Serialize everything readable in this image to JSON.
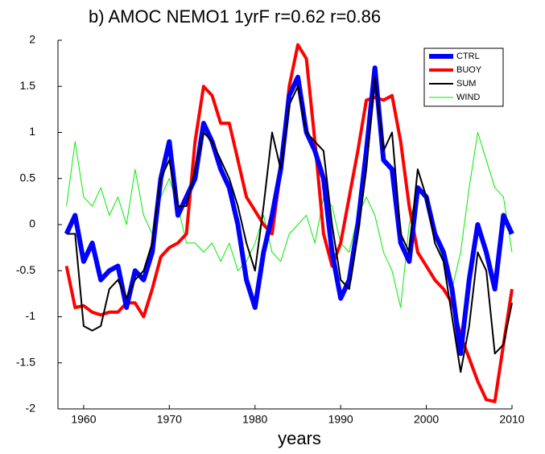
{
  "chart_data": {
    "type": "line",
    "title": "b) AMOC NEMO1 1yrF r=0.62 r=0.86",
    "x_label": "years",
    "x": [
      1958,
      1959,
      1960,
      1961,
      1962,
      1963,
      1964,
      1965,
      1966,
      1967,
      1968,
      1969,
      1970,
      1971,
      1972,
      1973,
      1974,
      1975,
      1976,
      1977,
      1978,
      1979,
      1980,
      1981,
      1982,
      1983,
      1984,
      1985,
      1986,
      1987,
      1988,
      1989,
      1990,
      1991,
      1992,
      1993,
      1994,
      1995,
      1996,
      1997,
      1998,
      1999,
      2000,
      2001,
      2002,
      2003,
      2004,
      2005,
      2006,
      2007,
      2008,
      2009,
      2010
    ],
    "series": [
      {
        "name": "CTRL",
        "color": "#0000ff",
        "width": 6,
        "values": [
          -0.1,
          0.1,
          -0.4,
          -0.2,
          -0.6,
          -0.5,
          -0.45,
          -0.9,
          -0.5,
          -0.6,
          -0.3,
          0.5,
          0.9,
          0.1,
          0.3,
          0.5,
          1.1,
          0.9,
          0.6,
          0.4,
          0.0,
          -0.6,
          -0.9,
          -0.3,
          0.1,
          0.6,
          1.4,
          1.6,
          1.0,
          0.8,
          0.5,
          -0.3,
          -0.8,
          -0.6,
          0.0,
          0.8,
          1.7,
          0.7,
          0.6,
          -0.2,
          -0.4,
          0.4,
          0.3,
          -0.1,
          -0.3,
          -0.7,
          -1.4,
          -0.6,
          0.0,
          -0.3,
          -0.7,
          0.1,
          -0.1
        ]
      },
      {
        "name": "BUOY",
        "color": "#ff0000",
        "width": 4,
        "values": [
          -0.45,
          -0.9,
          -0.88,
          -0.95,
          -0.98,
          -0.95,
          -0.95,
          -0.85,
          -0.85,
          -1.0,
          -0.7,
          -0.35,
          -0.25,
          -0.2,
          -0.1,
          0.9,
          1.5,
          1.4,
          1.1,
          1.1,
          0.7,
          0.3,
          0.15,
          0.0,
          -0.1,
          0.6,
          1.5,
          1.95,
          1.8,
          0.9,
          -0.1,
          -0.45,
          -0.2,
          0.3,
          0.8,
          1.35,
          1.38,
          1.35,
          1.4,
          0.9,
          0.2,
          -0.3,
          -0.45,
          -0.6,
          -0.7,
          -0.85,
          -1.2,
          -1.45,
          -1.7,
          -1.9,
          -1.92,
          -1.3,
          -0.7
        ]
      },
      {
        "name": "SUM",
        "color": "#000000",
        "width": 2,
        "values": [
          -0.1,
          -0.1,
          -1.1,
          -1.15,
          -1.1,
          -0.7,
          -0.6,
          -0.8,
          -0.6,
          -0.5,
          -0.2,
          0.5,
          0.7,
          0.2,
          0.2,
          0.6,
          1.0,
          0.9,
          0.7,
          0.5,
          0.2,
          -0.2,
          -0.5,
          0.2,
          1.0,
          0.6,
          1.3,
          1.5,
          1.0,
          0.9,
          0.8,
          0.0,
          -0.6,
          -0.7,
          -0.1,
          0.6,
          1.6,
          0.8,
          1.0,
          -0.1,
          -0.3,
          0.6,
          0.3,
          -0.2,
          -0.4,
          -1.0,
          -1.6,
          -1.1,
          -0.3,
          -0.5,
          -1.4,
          -1.3,
          -0.85
        ]
      },
      {
        "name": "WIND",
        "color": "#00ee00",
        "width": 1,
        "values": [
          0.2,
          0.9,
          0.3,
          0.2,
          0.4,
          0.1,
          0.3,
          0.0,
          0.6,
          0.1,
          -0.1,
          0.3,
          0.5,
          0.2,
          -0.2,
          -0.2,
          -0.3,
          -0.2,
          -0.4,
          -0.2,
          -0.5,
          -0.4,
          -0.2,
          0.1,
          -0.3,
          -0.4,
          -0.1,
          0.0,
          0.1,
          -0.2,
          0.3,
          0.2,
          -0.2,
          -0.3,
          0.1,
          0.3,
          0.1,
          -0.3,
          -0.5,
          -0.9,
          0.0,
          0.4,
          0.3,
          -0.1,
          -0.4,
          -0.7,
          -0.3,
          0.4,
          1.0,
          0.7,
          0.4,
          0.3,
          -0.3
        ]
      }
    ],
    "xlim": [
      1957,
      2010
    ],
    "xticks": [
      1960,
      1970,
      1980,
      1990,
      2000,
      2010
    ],
    "ylim": [
      -2,
      2
    ],
    "yticks": [
      -2,
      -1.5,
      -1,
      -0.5,
      0,
      0.5,
      1,
      1.5,
      2
    ],
    "legend": "upper right"
  }
}
